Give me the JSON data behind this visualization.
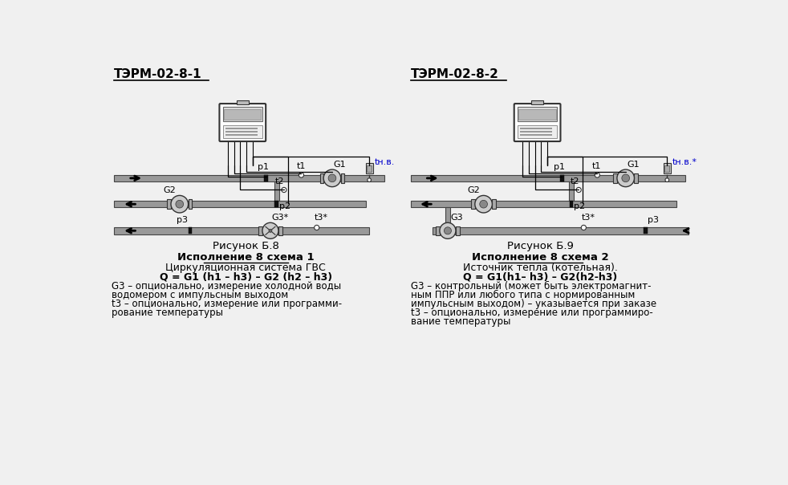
{
  "bg_color": "#f0f0f0",
  "left_title": "ТЭРМ-02-8-1",
  "right_title": "ТЭРМ-02-8-2",
  "left_caption_line1": "Рисунок Б.8",
  "left_caption_line2": "Исполнение 8 схема 1",
  "left_caption_line3": "Циркуляционная система ГВС",
  "left_caption_line4": "Q = G1 (h1 – h3) – G2 (h2 – h3)",
  "left_caption_line5": "G3 – опционально, измерение холодной воды",
  "left_caption_line6": "водомером с импульсным выходом",
  "left_caption_line7": "t3 – опционально, измерение или программи-",
  "left_caption_line8": "рование температуры",
  "right_caption_line1": "Рисунок Б.9",
  "right_caption_line2": "Исполнение 8 схема 2",
  "right_caption_line3": "Источник тепла (котельная).",
  "right_caption_line4": "Q = G1(h1– h3) – G2(h2-h3)",
  "right_caption_line5": "G3 – контрольный (может быть электромагнит-",
  "right_caption_line6": "ным ППР или любого типа с нормированным",
  "right_caption_line7": "импульсным выходом) – указывается при заказе",
  "right_caption_line8": "t3 – опционально, измерение или программиро-",
  "right_caption_line9": "вание температуры",
  "pipe_color": "#999999",
  "pipe_edge": "#444444",
  "device_color": "#cccccc",
  "device_edge": "#333333",
  "wire_color": "#000000",
  "label_color": "#000000"
}
